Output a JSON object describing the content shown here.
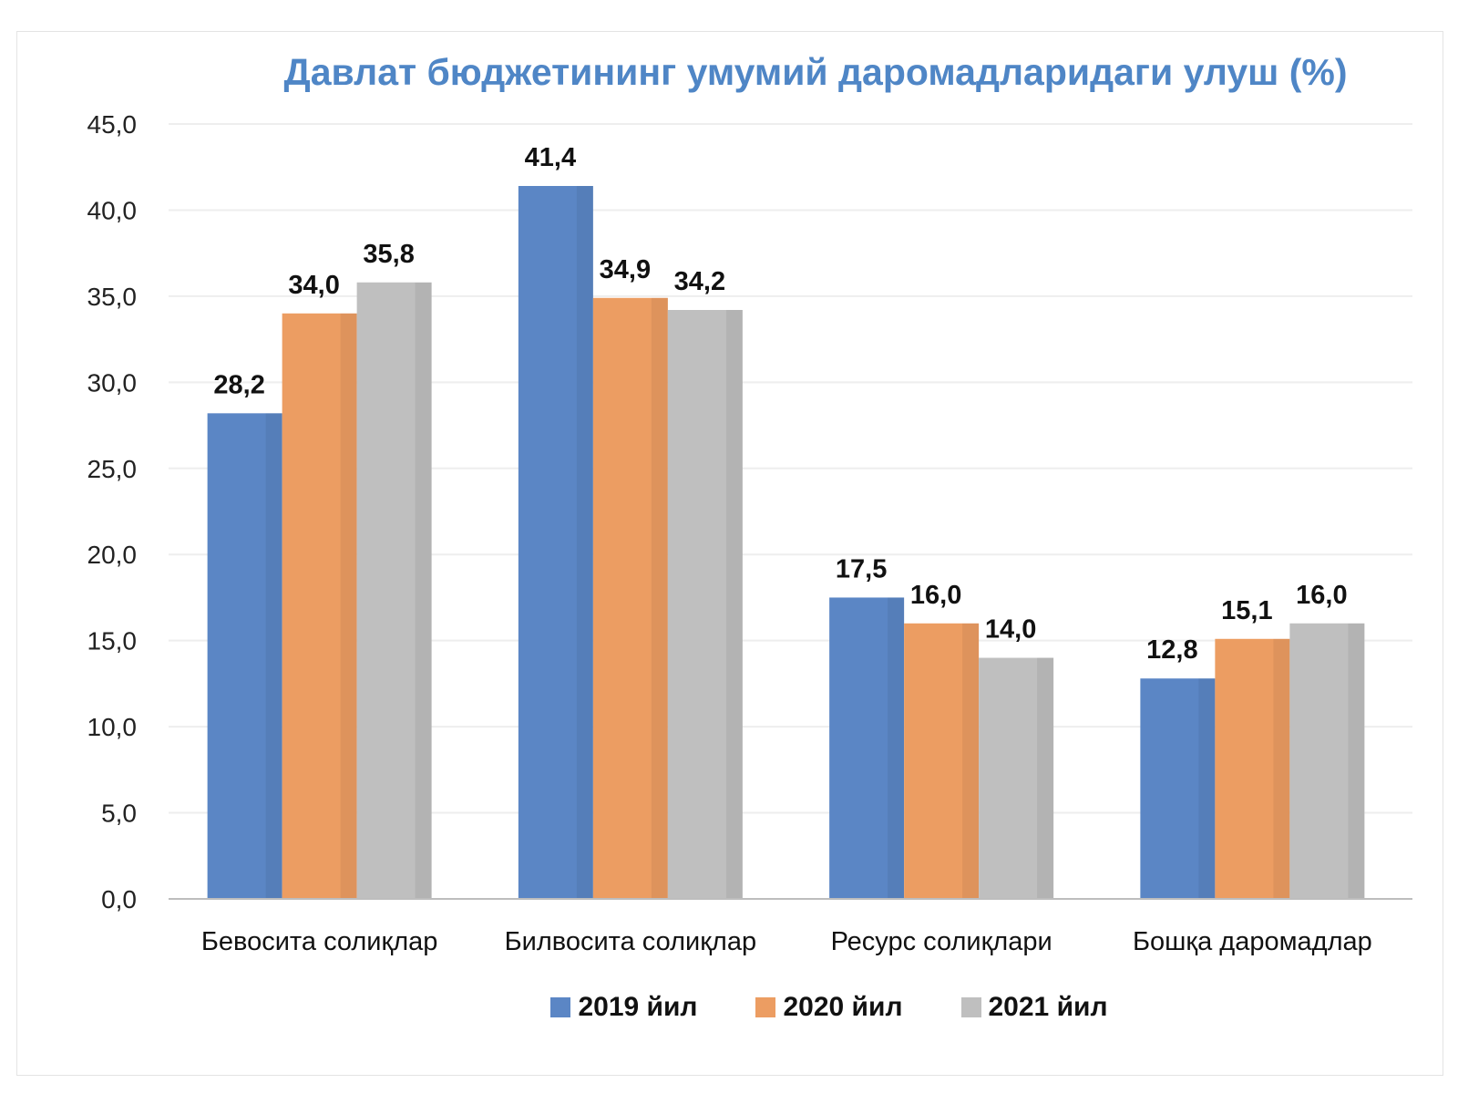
{
  "chart_data": {
    "type": "bar",
    "title": "Давлат бюджетининг умумий даромадларидаги улуш (%)",
    "categories": [
      "Бевосита солиқлар",
      "Билвосита солиқлар",
      "Ресурс солиқлари",
      "Бошқа даромадлар"
    ],
    "series": [
      {
        "name": "2019 йил",
        "color": "#5b86c5",
        "values": [
          28.2,
          41.4,
          17.5,
          12.8
        ],
        "labels": [
          "28,2",
          "41,4",
          "17,5",
          "12,8"
        ]
      },
      {
        "name": "2020 йил",
        "color": "#ec9d62",
        "values": [
          34.0,
          34.9,
          16.0,
          15.1
        ],
        "labels": [
          "34,0",
          "34,9",
          "16,0",
          "15,1"
        ]
      },
      {
        "name": "2021 йил",
        "color": "#bfbfbf",
        "values": [
          35.8,
          34.2,
          14.0,
          16.0
        ],
        "labels": [
          "35,8",
          "34,2",
          "14,0",
          "16,0"
        ]
      }
    ],
    "yticks": [
      "0,0",
      "5,0",
      "10,0",
      "15,0",
      "20,0",
      "25,0",
      "30,0",
      "35,0",
      "40,0",
      "45,0"
    ],
    "ylim": [
      0,
      45
    ],
    "grid": true,
    "legend_position": "bottom"
  }
}
